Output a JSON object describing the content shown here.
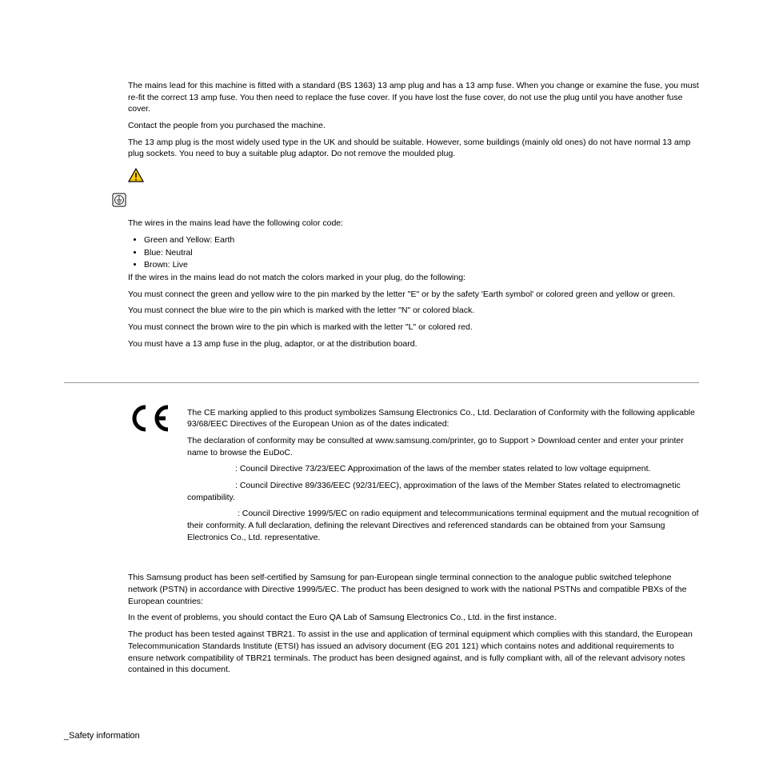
{
  "section1": {
    "p1": "The mains lead for this machine is fitted with a standard (BS 1363) 13 amp plug and has a 13 amp fuse. When you change or examine the fuse, you must re-fit the correct 13 amp fuse. You then need to replace the fuse cover. If you have lost the fuse cover, do not use the plug until you have another fuse cover.",
    "p2": "Contact the people from you purchased the machine.",
    "p3": "The 13 amp plug is the most widely used type in the UK and should be suitable. However, some buildings (mainly old ones) do not have normal 13 amp plug sockets. You need to buy a suitable plug adaptor. Do not remove the moulded plug."
  },
  "wiring": {
    "heading": "The wires in the mains lead have the following color code:",
    "items": [
      {
        "label": "Green and Yellow: Earth"
      },
      {
        "label": "Blue: Neutral"
      },
      {
        "label": "Brown: Live"
      }
    ],
    "p1": "If the wires in the mains lead do not match the colors marked in your plug, do the following:",
    "p2": "You must connect the green and yellow wire to the pin marked by the letter \"E\" or by the safety 'Earth symbol' or colored green and yellow or green.",
    "p3": "You must connect the blue wire to the pin which is marked with the letter \"N\" or colored black.",
    "p4": "You must connect the brown wire to the pin which is marked with the letter \"L\" or colored red.",
    "p5": "You must have a 13 amp fuse in the plug, adaptor, or at the distribution board."
  },
  "ce": {
    "p1": "The CE marking applied to this product symbolizes Samsung Electronics Co., Ltd. Declaration of Conformity with the following applicable 93/68/EEC Directives of the European Union as of the dates indicated:",
    "p2": "The declaration of conformity may be consulted at www.samsung.com/printer, go to Support > Download center and enter your printer name to browse the EuDoC.",
    "d1": ": Council Directive 73/23/EEC Approximation of the laws of the member states related to low voltage equipment.",
    "d2": ": Council Directive 89/336/EEC (92/31/EEC), approximation of the laws of the Member States related to electromagnetic",
    "d2b": "compatibility.",
    "d3": ": Council Directive 1999/5/EC on radio equipment and telecommunications terminal equipment and the mutual recognition of their conformity. A full declaration, defining the relevant Directives and referenced standards can be obtained from your Samsung Electronics Co., Ltd. representative."
  },
  "cert": {
    "p1": "This Samsung product has been self-certified by Samsung for pan-European single terminal connection to the analogue public switched telephone network (PSTN) in accordance with Directive 1999/5/EC. The product has been designed to work with the national PSTNs and compatible PBXs of the European countries:",
    "p2": "In the event of problems, you should contact the Euro QA Lab of Samsung Electronics Co., Ltd. in the first instance.",
    "p3": "The product has been tested against TBR21. To assist in the use and application of terminal equipment which complies with this standard, the European Telecommunication Standards Institute (ETSI) has issued an advisory document (EG 201 121) which contains notes and additional requirements to ensure network compatibility of TBR21 terminals. The product has been designed against, and is fully compliant with, all of the relevant advisory notes contained in this document."
  },
  "footer": "_Safety information",
  "icons": {
    "warning_stroke": "#000000",
    "warning_fill": "#ffcc00",
    "ground_stroke": "#000000",
    "ce_stroke": "#000000"
  }
}
